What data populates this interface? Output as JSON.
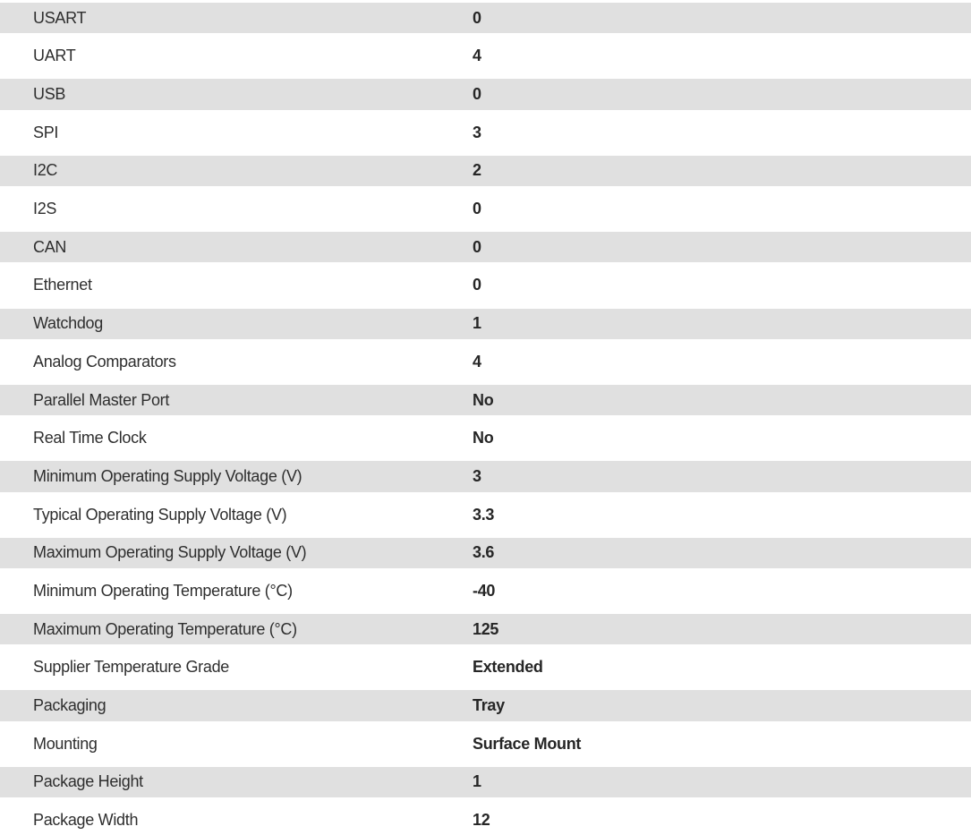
{
  "colors": {
    "background": "#ffffff",
    "stripe": "#e0e0e0",
    "label_text": "#2e2e2e",
    "value_text": "#262626"
  },
  "spec_table": {
    "rows": [
      {
        "label": "USART",
        "value": "0"
      },
      {
        "label": "UART",
        "value": "4"
      },
      {
        "label": "USB",
        "value": "0"
      },
      {
        "label": "SPI",
        "value": "3"
      },
      {
        "label": "I2C",
        "value": "2"
      },
      {
        "label": "I2S",
        "value": "0"
      },
      {
        "label": "CAN",
        "value": "0"
      },
      {
        "label": "Ethernet",
        "value": "0"
      },
      {
        "label": "Watchdog",
        "value": "1"
      },
      {
        "label": "Analog Comparators",
        "value": "4"
      },
      {
        "label": "Parallel Master Port",
        "value": "No"
      },
      {
        "label": "Real Time Clock",
        "value": "No"
      },
      {
        "label": "Minimum Operating Supply Voltage (V)",
        "value": "3"
      },
      {
        "label": "Typical Operating Supply Voltage (V)",
        "value": "3.3"
      },
      {
        "label": "Maximum Operating Supply Voltage (V)",
        "value": "3.6"
      },
      {
        "label": "Minimum Operating Temperature (°C)",
        "value": "-40"
      },
      {
        "label": "Maximum Operating Temperature (°C)",
        "value": "125"
      },
      {
        "label": "Supplier Temperature Grade",
        "value": "Extended"
      },
      {
        "label": "Packaging",
        "value": "Tray"
      },
      {
        "label": "Mounting",
        "value": "Surface Mount"
      },
      {
        "label": "Package Height",
        "value": "1"
      },
      {
        "label": "Package Width",
        "value": "12"
      }
    ]
  }
}
